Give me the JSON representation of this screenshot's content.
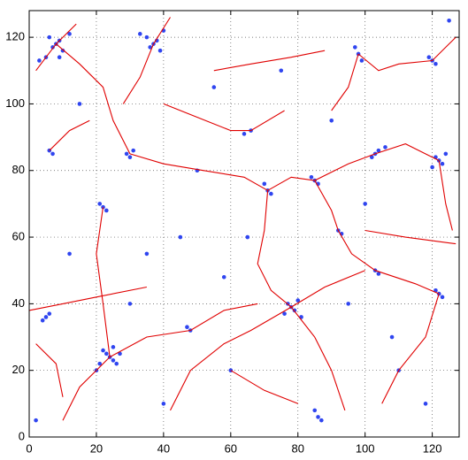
{
  "chart_data": {
    "type": "scatter",
    "xlim": [
      0,
      128
    ],
    "ylim": [
      0,
      128
    ],
    "xticks": [
      0,
      20,
      40,
      60,
      80,
      100,
      120
    ],
    "yticks": [
      0,
      20,
      40,
      60,
      80,
      100,
      120
    ],
    "grid": true,
    "series": [
      {
        "type": "scatter",
        "color": "#2f45f0",
        "x": [
          8,
          7,
          9,
          10,
          6,
          5,
          3,
          12,
          9,
          37,
          36,
          38,
          35,
          39,
          33,
          40,
          24,
          23,
          25,
          22,
          26,
          21,
          25,
          20,
          27,
          78,
          77,
          79,
          80,
          76,
          81,
          122,
          121,
          123,
          124,
          120,
          22,
          23,
          21,
          103,
          104,
          102,
          106,
          122,
          121,
          123,
          98,
          97,
          99,
          92,
          93,
          71,
          72,
          70,
          85,
          84,
          86,
          66,
          64,
          29,
          30,
          31,
          6,
          7,
          5,
          6,
          4,
          48,
          47,
          86,
          85,
          87,
          103,
          104,
          120,
          121,
          119,
          15,
          45,
          60,
          110,
          100,
          55,
          75,
          40,
          12,
          118,
          65,
          90,
          30,
          50,
          108,
          2,
          125,
          58,
          35,
          95
        ],
        "values": [
          118,
          117,
          119,
          116,
          120,
          114,
          113,
          121,
          114,
          118,
          117,
          119,
          120,
          116,
          121,
          122,
          24,
          25,
          23,
          26,
          22,
          22,
          27,
          20,
          25,
          39,
          40,
          38,
          41,
          37,
          36,
          83,
          84,
          82,
          85,
          81,
          69,
          68,
          70,
          85,
          86,
          84,
          87,
          43,
          44,
          42,
          115,
          117,
          113,
          62,
          61,
          74,
          73,
          76,
          77,
          78,
          76,
          92,
          91,
          85,
          84,
          86,
          86,
          85,
          36,
          37,
          35,
          32,
          33,
          6,
          8,
          5,
          50,
          49,
          113,
          112,
          114,
          100,
          60,
          20,
          20,
          70,
          105,
          110,
          10,
          55,
          10,
          60,
          95,
          40,
          80,
          30,
          5,
          125,
          48,
          55,
          40
        ]
      },
      {
        "type": "line",
        "color": "#e00000",
        "x": [
          2,
          8,
          14
        ],
        "values": [
          110,
          118,
          124
        ]
      },
      {
        "type": "line",
        "color": "#e00000",
        "x": [
          37,
          42
        ],
        "values": [
          118,
          126
        ]
      },
      {
        "type": "line",
        "color": "#e00000",
        "x": [
          8,
          15,
          22,
          25,
          30
        ],
        "values": [
          118,
          112,
          105,
          95,
          85
        ]
      },
      {
        "type": "line",
        "color": "#e00000",
        "x": [
          37,
          33,
          28
        ],
        "values": [
          118,
          108,
          100
        ]
      },
      {
        "type": "line",
        "color": "#e00000",
        "x": [
          55,
          66,
          78,
          88
        ],
        "values": [
          110,
          112,
          114,
          116
        ]
      },
      {
        "type": "line",
        "color": "#e00000",
        "x": [
          98,
          95,
          90
        ],
        "values": [
          115,
          105,
          98
        ]
      },
      {
        "type": "line",
        "color": "#e00000",
        "x": [
          98,
          104,
          110,
          120,
          127
        ],
        "values": [
          115,
          110,
          112,
          113,
          120
        ]
      },
      {
        "type": "line",
        "color": "#e00000",
        "x": [
          30,
          40,
          52,
          64,
          71
        ],
        "values": [
          85,
          82,
          80,
          78,
          74
        ]
      },
      {
        "type": "line",
        "color": "#e00000",
        "x": [
          71,
          78,
          85,
          95,
          103,
          112,
          122
        ],
        "values": [
          74,
          78,
          77,
          82,
          85,
          88,
          83
        ]
      },
      {
        "type": "line",
        "color": "#e00000",
        "x": [
          85,
          90,
          92,
          96,
          103,
          115,
          122
        ],
        "values": [
          77,
          68,
          62,
          55,
          50,
          46,
          43
        ]
      },
      {
        "type": "line",
        "color": "#e00000",
        "x": [
          71,
          70,
          68,
          72,
          78
        ],
        "values": [
          74,
          62,
          52,
          44,
          39
        ]
      },
      {
        "type": "line",
        "color": "#e00000",
        "x": [
          78,
          66,
          58,
          48,
          42
        ],
        "values": [
          39,
          32,
          28,
          20,
          8
        ]
      },
      {
        "type": "line",
        "color": "#e00000",
        "x": [
          78,
          85,
          90,
          94
        ],
        "values": [
          39,
          30,
          20,
          8
        ]
      },
      {
        "type": "line",
        "color": "#e00000",
        "x": [
          78,
          88,
          100
        ],
        "values": [
          39,
          45,
          50
        ]
      },
      {
        "type": "line",
        "color": "#e00000",
        "x": [
          22,
          20,
          22,
          24
        ],
        "values": [
          69,
          55,
          40,
          24
        ]
      },
      {
        "type": "line",
        "color": "#e00000",
        "x": [
          24,
          15,
          10
        ],
        "values": [
          24,
          15,
          5
        ]
      },
      {
        "type": "line",
        "color": "#e00000",
        "x": [
          24,
          35,
          48,
          58,
          68
        ],
        "values": [
          24,
          30,
          32,
          38,
          40
        ]
      },
      {
        "type": "line",
        "color": "#e00000",
        "x": [
          0,
          10,
          20,
          35
        ],
        "values": [
          38,
          40,
          42,
          45
        ]
      },
      {
        "type": "line",
        "color": "#e00000",
        "x": [
          40,
          50,
          60,
          66,
          76
        ],
        "values": [
          100,
          96,
          92,
          92,
          98
        ]
      },
      {
        "type": "line",
        "color": "#e00000",
        "x": [
          122,
          124,
          126
        ],
        "values": [
          83,
          70,
          62
        ]
      },
      {
        "type": "line",
        "color": "#e00000",
        "x": [
          122,
          118,
          110,
          105
        ],
        "values": [
          43,
          30,
          20,
          10
        ]
      },
      {
        "type": "line",
        "color": "#e00000",
        "x": [
          60,
          70,
          80
        ],
        "values": [
          20,
          14,
          10
        ]
      },
      {
        "type": "line",
        "color": "#e00000",
        "x": [
          2,
          8,
          10
        ],
        "values": [
          28,
          22,
          12
        ]
      },
      {
        "type": "line",
        "color": "#e00000",
        "x": [
          100,
          112,
          127
        ],
        "values": [
          62,
          60,
          58
        ]
      },
      {
        "type": "line",
        "color": "#e00000",
        "x": [
          6,
          12,
          18
        ],
        "values": [
          86,
          92,
          95
        ]
      }
    ]
  }
}
